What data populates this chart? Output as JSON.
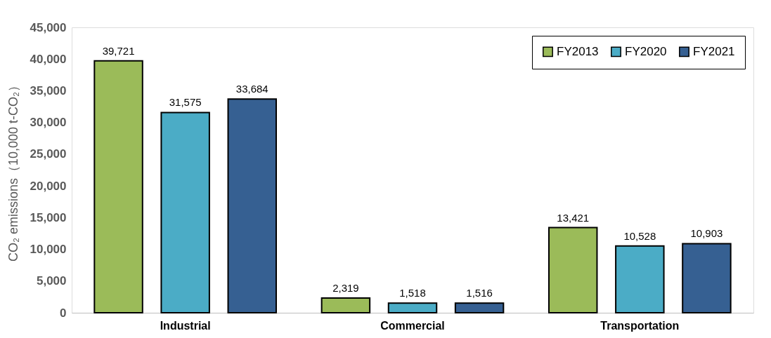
{
  "chart_data": {
    "type": "bar",
    "ylabel": "CO₂ emissions（10,000 t-CO₂）",
    "categories": [
      "Industrial",
      "Commercial",
      "Transportation"
    ],
    "series": [
      {
        "name": "FY2013",
        "color": "#9bbb59",
        "values": [
          39721,
          2319,
          13421
        ],
        "value_labels": [
          "39,721",
          "2,319",
          "13,421"
        ]
      },
      {
        "name": "FY2020",
        "color": "#4bacc6",
        "values": [
          31575,
          1518,
          10528
        ],
        "value_labels": [
          "31,575",
          "1,518",
          "10,528"
        ]
      },
      {
        "name": "FY2021",
        "color": "#366092",
        "values": [
          33684,
          1516,
          10903
        ],
        "value_labels": [
          "33,684",
          "1,516",
          "10,903"
        ]
      }
    ],
    "ylim": [
      0,
      45000
    ],
    "yticks": [
      {
        "value": 0,
        "label": "0"
      },
      {
        "value": 5000,
        "label": "5,000"
      },
      {
        "value": 10000,
        "label": "10,000"
      },
      {
        "value": 15000,
        "label": "15,000"
      },
      {
        "value": 20000,
        "label": "20,000"
      },
      {
        "value": 25000,
        "label": "25,000"
      },
      {
        "value": 30000,
        "label": "30,000"
      },
      {
        "value": 35000,
        "label": "35,000"
      },
      {
        "value": 40000,
        "label": "40,000"
      },
      {
        "value": 45000,
        "label": "45,000"
      }
    ],
    "grid": false,
    "legend": "top right"
  }
}
